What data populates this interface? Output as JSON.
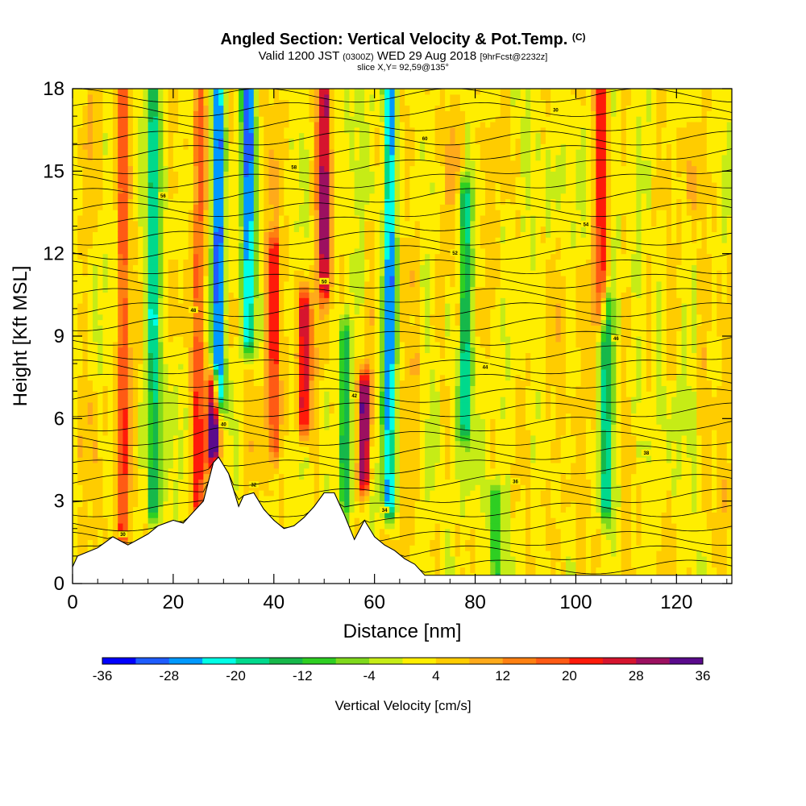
{
  "title": "Angled Section: Vertical Velocity & Pot.Temp.",
  "title_mark": "(C)",
  "subtitle": {
    "valid": "Valid 1200 JST",
    "utc": "(0300Z)",
    "date": "WED 29 Aug 2018",
    "fcst": "[9hrFcst@2232z]"
  },
  "slice_label": "slice X,Y= 92,59@135°",
  "chart_data": {
    "type": "heatmap",
    "xlabel": "Distance [nm]",
    "ylabel": "Height [Kft MSL]",
    "xlim": [
      0,
      131
    ],
    "ylim": [
      0,
      18
    ],
    "x_ticks": [
      0,
      20,
      40,
      60,
      80,
      100,
      120
    ],
    "y_ticks": [
      0,
      3,
      6,
      9,
      12,
      15,
      18
    ],
    "grid": false,
    "colorbar": {
      "label": "Vertical Velocity [cm/s]",
      "ticks": [
        -36,
        -28,
        -20,
        -12,
        -4,
        4,
        12,
        20,
        28,
        36
      ],
      "colors": [
        "#0000ff",
        "#1e5cff",
        "#0099ff",
        "#00ffe6",
        "#00d98c",
        "#16b84a",
        "#2ecf22",
        "#7fd91c",
        "#c6ec16",
        "#ffee00",
        "#ffcc00",
        "#ffaa1a",
        "#ff8011",
        "#ff5a14",
        "#ff1a0a",
        "#d6142e",
        "#9c1060",
        "#5a0a8c"
      ]
    },
    "theta_contours": {
      "interval_K": 2,
      "labels": [
        "30",
        "32",
        "34",
        "36",
        "38",
        "40",
        "42",
        "44",
        "46",
        "48",
        "50",
        "52",
        "54",
        "56",
        "58",
        "60"
      ]
    },
    "updraft_features": [
      {
        "x": 10,
        "y_base": 2,
        "y_top": 18,
        "w": 0.5
      },
      {
        "x": 16,
        "y_base": 3,
        "y_top": 18,
        "w": -0.6
      },
      {
        "x": 25,
        "y_base": 3,
        "y_top": 18,
        "w": 0.45
      },
      {
        "x": 28,
        "y_base": 5,
        "y_top": 7,
        "w": 1.0
      },
      {
        "x": 29,
        "y_base": 7,
        "y_top": 18,
        "w": -1.0
      },
      {
        "x": 35,
        "y_base": 9,
        "y_top": 18,
        "w": -0.9
      },
      {
        "x": 40,
        "y_base": 5,
        "y_top": 12,
        "w": 0.5
      },
      {
        "x": 46,
        "y_base": 6,
        "y_top": 10,
        "w": 0.7
      },
      {
        "x": 50,
        "y_base": 11,
        "y_top": 18,
        "w": 0.75
      },
      {
        "x": 54,
        "y_base": 3,
        "y_top": 9,
        "w": -0.5
      },
      {
        "x": 58,
        "y_base": 4,
        "y_top": 7,
        "w": 0.9
      },
      {
        "x": 63,
        "y_base": 3,
        "y_top": 18,
        "w": -0.85
      },
      {
        "x": 78,
        "y_base": 6,
        "y_top": 14,
        "w": -0.6
      },
      {
        "x": 84,
        "y_base": 0,
        "y_top": 3,
        "w": -0.5
      },
      {
        "x": 105,
        "y_base": 10,
        "y_top": 18,
        "w": 0.55
      },
      {
        "x": 106,
        "y_base": 3,
        "y_top": 10,
        "w": -0.6
      }
    ],
    "terrain_profile": [
      {
        "x": 0,
        "h": 0.6
      },
      {
        "x": 1,
        "h": 1.0
      },
      {
        "x": 5,
        "h": 1.3
      },
      {
        "x": 8,
        "h": 1.7
      },
      {
        "x": 11,
        "h": 1.4
      },
      {
        "x": 13,
        "h": 1.6
      },
      {
        "x": 15,
        "h": 1.8
      },
      {
        "x": 17,
        "h": 2.1
      },
      {
        "x": 20,
        "h": 2.3
      },
      {
        "x": 22,
        "h": 2.2
      },
      {
        "x": 24,
        "h": 2.6
      },
      {
        "x": 26,
        "h": 3.0
      },
      {
        "x": 27,
        "h": 3.7
      },
      {
        "x": 28,
        "h": 4.4
      },
      {
        "x": 29,
        "h": 4.6
      },
      {
        "x": 31,
        "h": 4.0
      },
      {
        "x": 33,
        "h": 2.8
      },
      {
        "x": 34,
        "h": 3.2
      },
      {
        "x": 36,
        "h": 3.3
      },
      {
        "x": 38,
        "h": 2.7
      },
      {
        "x": 40,
        "h": 2.3
      },
      {
        "x": 42,
        "h": 2.0
      },
      {
        "x": 44,
        "h": 2.1
      },
      {
        "x": 46,
        "h": 2.4
      },
      {
        "x": 48,
        "h": 2.8
      },
      {
        "x": 50,
        "h": 3.3
      },
      {
        "x": 52,
        "h": 3.3
      },
      {
        "x": 54,
        "h": 2.5
      },
      {
        "x": 56,
        "h": 1.6
      },
      {
        "x": 58,
        "h": 2.3
      },
      {
        "x": 60,
        "h": 1.7
      },
      {
        "x": 62,
        "h": 1.4
      },
      {
        "x": 64,
        "h": 1.2
      },
      {
        "x": 66,
        "h": 0.9
      },
      {
        "x": 68,
        "h": 0.7
      },
      {
        "x": 70,
        "h": 0.3
      },
      {
        "x": 131,
        "h": 0.3
      }
    ]
  }
}
